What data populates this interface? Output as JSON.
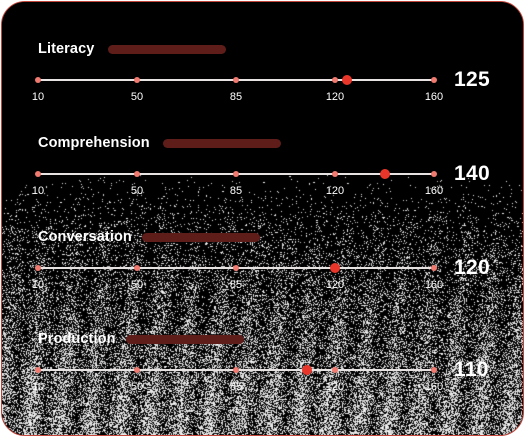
{
  "sliders": [
    {
      "label": "Literacy",
      "value": 125,
      "value_text": "125"
    },
    {
      "label": "Comprehension",
      "value": 140,
      "value_text": "140"
    },
    {
      "label": "Conversation",
      "value": 120,
      "value_text": "120"
    },
    {
      "label": "Production",
      "value": 110,
      "value_text": "110"
    }
  ],
  "scale": {
    "ticks": [
      10,
      50,
      85,
      120,
      160
    ],
    "tick_labels": [
      "10",
      "50",
      "85",
      "120",
      "160"
    ],
    "min": 10,
    "max": 160
  },
  "colors": {
    "card_border": "#c2453a",
    "pill": "#5e1d19",
    "track": "#e8e3e3",
    "tick": "#f07a70",
    "knob": "#e8372a",
    "text": "#ffffff"
  }
}
